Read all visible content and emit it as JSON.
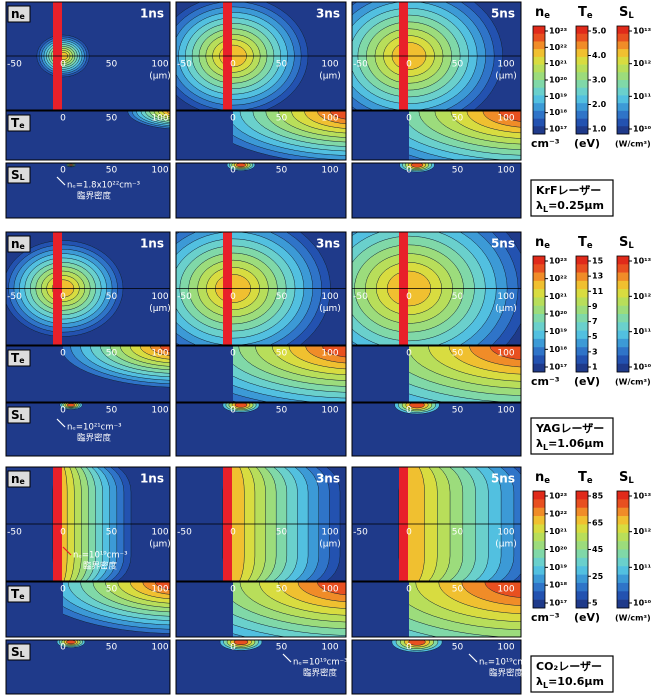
{
  "blocks": [
    {
      "times": [
        "1ns",
        "3ns",
        "5ns"
      ],
      "panels": [
        {
          "main": "n",
          "sub": "e"
        },
        {
          "main": "T",
          "sub": "e"
        },
        {
          "main": "S",
          "sub": "L"
        }
      ],
      "axis_labels": [
        "-50",
        "0",
        "50",
        "100"
      ],
      "unit": "(μm)",
      "colorbars": [
        {
          "title": {
            "main": "n",
            "sub": "e"
          },
          "ticks": [
            "10²³",
            "10²²",
            "10²¹",
            "10²⁰",
            "10¹⁹",
            "10¹⁸",
            "10¹⁷"
          ],
          "unit": "cm⁻³"
        },
        {
          "title": {
            "main": "T",
            "sub": "e"
          },
          "ticks": [
            "5.0",
            "4.0",
            "3.0",
            "2.0",
            "1.0"
          ],
          "unit": "(eV)"
        },
        {
          "title": {
            "main": "S",
            "sub": "L"
          },
          "ticks": [
            "10¹³",
            "10¹²",
            "10¹¹",
            "10¹⁰"
          ],
          "unit": "(W/cm³)"
        }
      ],
      "laser": {
        "name": "KrFレーザー",
        "symbol": "λ",
        "sub": "L",
        "rest": "=0.25μm"
      },
      "annotations": [
        [
          "nₑ=1.8x10²²cm⁻³",
          "臨界密度"
        ]
      ]
    },
    {
      "times": [
        "1ns",
        "3ns",
        "5ns"
      ],
      "panels": [
        {
          "main": "n",
          "sub": "e"
        },
        {
          "main": "T",
          "sub": "e"
        },
        {
          "main": "S",
          "sub": "L"
        }
      ],
      "axis_labels": [
        "-50",
        "0",
        "50",
        "100"
      ],
      "unit": "(μm)",
      "colorbars": [
        {
          "title": {
            "main": "n",
            "sub": "e"
          },
          "ticks": [
            "10²³",
            "10²²",
            "10²¹",
            "10²⁰",
            "10¹⁹",
            "10¹⁸",
            "10¹⁷"
          ],
          "unit": "cm⁻³"
        },
        {
          "title": {
            "main": "T",
            "sub": "e"
          },
          "ticks": [
            "15",
            "13",
            "11",
            "9",
            "7",
            "5",
            "3",
            "1"
          ],
          "unit": "(eV)"
        },
        {
          "title": {
            "main": "S",
            "sub": "L"
          },
          "ticks": [
            "10¹³",
            "10¹²",
            "10¹¹",
            "10¹⁰"
          ],
          "unit": "(W/cm³)"
        }
      ],
      "laser": {
        "name": "YAGレーザー",
        "symbol": "λ",
        "sub": "L",
        "rest": "=1.06μm"
      },
      "annotations": [
        [
          "nₑ=10²¹cm⁻³",
          "臨界密度"
        ]
      ]
    },
    {
      "times": [
        "1ns",
        "3ns",
        "5ns"
      ],
      "panels": [
        {
          "main": "n",
          "sub": "e"
        },
        {
          "main": "T",
          "sub": "e"
        },
        {
          "main": "S",
          "sub": "L"
        }
      ],
      "axis_labels": [
        "-50",
        "0",
        "50",
        "100"
      ],
      "unit": "(μm)",
      "colorbars": [
        {
          "title": {
            "main": "n",
            "sub": "e"
          },
          "ticks": [
            "10²³",
            "10²²",
            "10²¹",
            "10²⁰",
            "10¹⁹",
            "10¹⁸",
            "10¹⁷"
          ],
          "unit": "cm⁻³"
        },
        {
          "title": {
            "main": "T",
            "sub": "e"
          },
          "ticks": [
            "85",
            "65",
            "45",
            "25",
            "5"
          ],
          "unit": "(eV)"
        },
        {
          "title": {
            "main": "S",
            "sub": "L"
          },
          "ticks": [
            "10¹³",
            "10¹²",
            "10¹¹",
            "10¹⁰"
          ],
          "unit": "(W/cm³)"
        }
      ],
      "laser": {
        "name": "CO₂レーザー",
        "symbol": "λ",
        "sub": "L",
        "rest": "=10.6μm"
      },
      "annotations": [
        [
          "nₑ=10¹⁹cm⁻³",
          "臨界密度"
        ],
        [
          "nₑ=10¹⁹cm⁻³",
          "臨界密度"
        ],
        [
          "nₑ=10¹⁹cm⁻³",
          "臨界密度"
        ]
      ]
    }
  ]
}
